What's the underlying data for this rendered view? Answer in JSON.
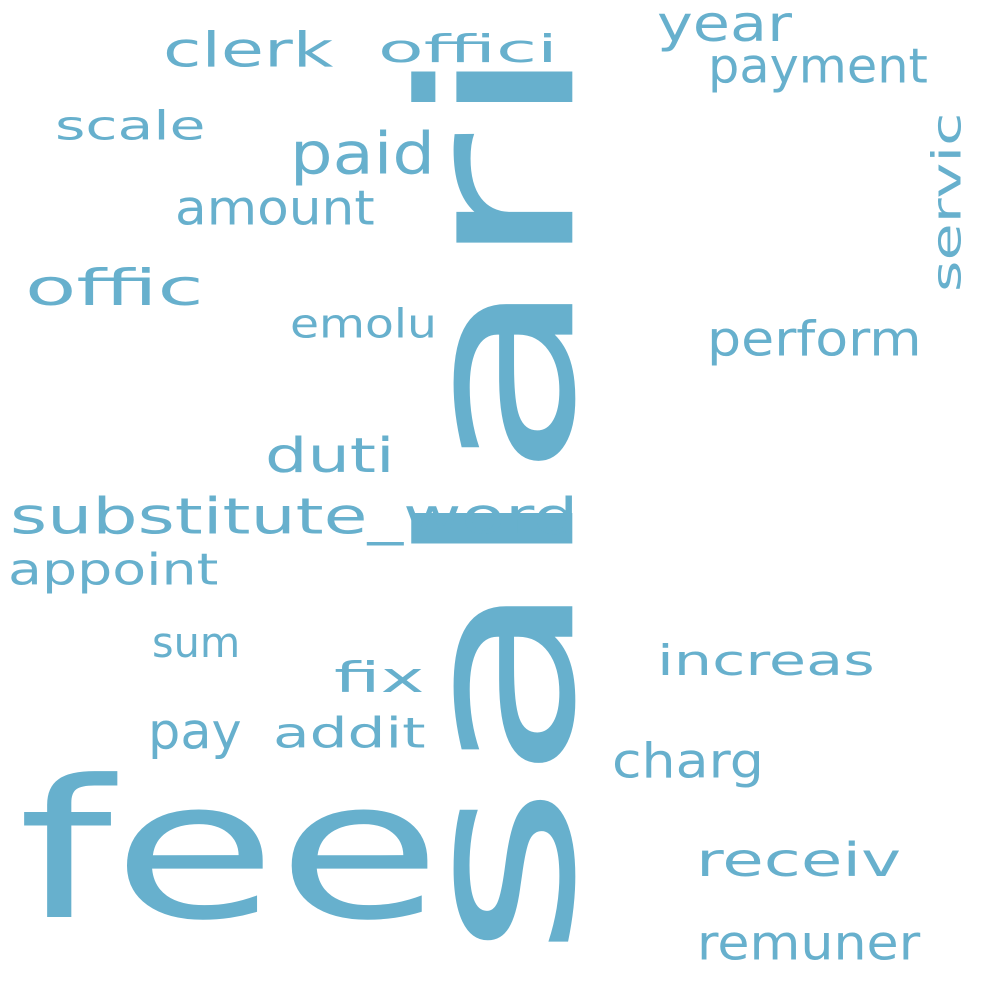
{
  "word_color": "#67b0cd",
  "background": "#ffffff",
  "words": [
    {
      "text": "salari",
      "orientation": "vertical"
    },
    {
      "text": "fee",
      "orientation": "horizontal"
    },
    {
      "text": "substitute_word",
      "orientation": "horizontal"
    },
    {
      "text": "clerk",
      "orientation": "horizontal"
    },
    {
      "text": "offici",
      "orientation": "horizontal"
    },
    {
      "text": "year",
      "orientation": "horizontal"
    },
    {
      "text": "payment",
      "orientation": "horizontal"
    },
    {
      "text": "scale",
      "orientation": "horizontal"
    },
    {
      "text": "paid",
      "orientation": "horizontal"
    },
    {
      "text": "amount",
      "orientation": "horizontal"
    },
    {
      "text": "servic",
      "orientation": "vertical"
    },
    {
      "text": "offic",
      "orientation": "horizontal"
    },
    {
      "text": "emolu",
      "orientation": "horizontal"
    },
    {
      "text": "perform",
      "orientation": "horizontal"
    },
    {
      "text": "duti",
      "orientation": "horizontal"
    },
    {
      "text": "appoint",
      "orientation": "horizontal"
    },
    {
      "text": "sum",
      "orientation": "horizontal"
    },
    {
      "text": "increas",
      "orientation": "horizontal"
    },
    {
      "text": "fix",
      "orientation": "horizontal"
    },
    {
      "text": "pay",
      "orientation": "horizontal"
    },
    {
      "text": "addit",
      "orientation": "horizontal"
    },
    {
      "text": "charg",
      "orientation": "horizontal"
    },
    {
      "text": "receiv",
      "orientation": "horizontal"
    },
    {
      "text": "remuner",
      "orientation": "horizontal"
    }
  ]
}
